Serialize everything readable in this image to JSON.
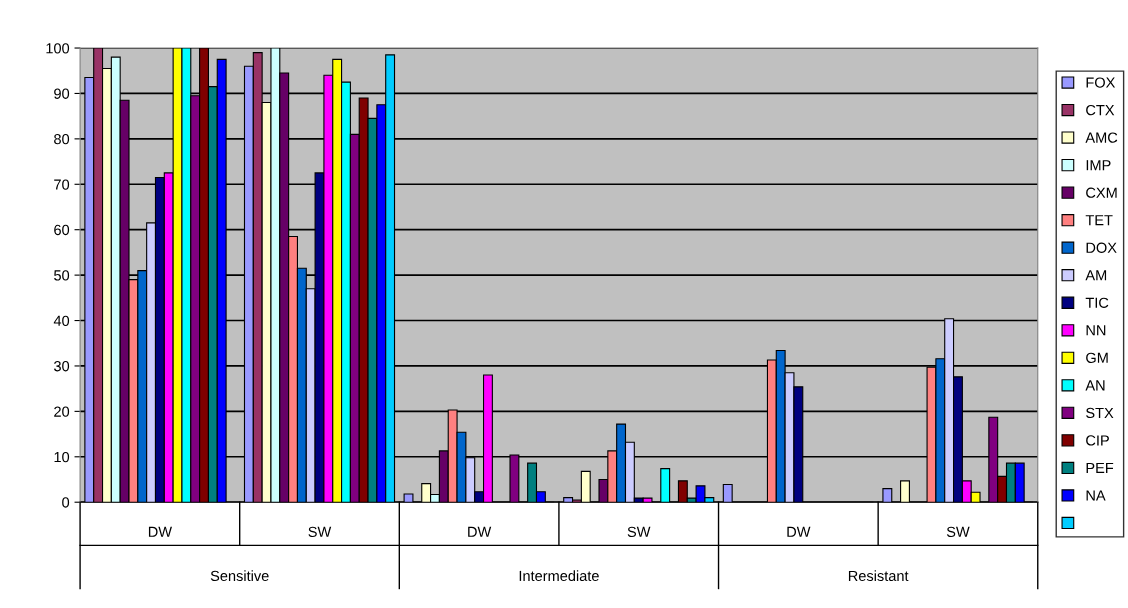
{
  "chart_data": {
    "type": "bar",
    "categories": [
      "DW",
      "SW",
      "DW",
      "SW",
      "DW",
      "SW"
    ],
    "annotations": [
      "Sensitive",
      "Intermediate",
      "Resistant"
    ],
    "ylim": [
      0,
      100
    ],
    "yticks": [
      0,
      10,
      20,
      30,
      40,
      50,
      60,
      70,
      80,
      90,
      100
    ],
    "grid": "y",
    "legend": "right",
    "series": [
      {
        "name": "FOX",
        "color": "#9999ff",
        "values": [
          93.5,
          96,
          1.8,
          1.0,
          3.9,
          3.0
        ]
      },
      {
        "name": "CTX",
        "color": "#993366",
        "values": [
          100,
          99,
          0,
          0.5,
          0,
          0
        ]
      },
      {
        "name": "AMC",
        "color": "#ffffcc",
        "values": [
          95.5,
          88,
          4.1,
          6.8,
          0,
          4.7
        ]
      },
      {
        "name": "IMP",
        "color": "#ccffff",
        "values": [
          98,
          100,
          1.7,
          0,
          0,
          0
        ]
      },
      {
        "name": "CXM",
        "color": "#660066",
        "values": [
          88.5,
          94.5,
          11.3,
          5.0,
          0,
          0
        ]
      },
      {
        "name": "TET",
        "color": "#ff8080",
        "values": [
          49,
          58.5,
          20.3,
          11.3,
          31.3,
          29.7
        ]
      },
      {
        "name": "DOX",
        "color": "#0066cc",
        "values": [
          51,
          51.5,
          15.4,
          17.2,
          33.4,
          31.6
        ]
      },
      {
        "name": "AM",
        "color": "#ccccff",
        "values": [
          61.5,
          47,
          9.8,
          13.2,
          28.5,
          40.4
        ]
      },
      {
        "name": "TIC",
        "color": "#000080",
        "values": [
          71.5,
          72.5,
          2.3,
          0.9,
          25.4,
          27.6
        ]
      },
      {
        "name": "NN",
        "color": "#ff00ff",
        "values": [
          72.5,
          94,
          28,
          0.9,
          0,
          4.7
        ]
      },
      {
        "name": "GM",
        "color": "#ffff00",
        "values": [
          100,
          97.5,
          0,
          0,
          0,
          2.2
        ]
      },
      {
        "name": "AN",
        "color": "#00ffff",
        "values": [
          100,
          92.5,
          0,
          7.4,
          0,
          0
        ]
      },
      {
        "name": "STX",
        "color": "#800080",
        "values": [
          89.5,
          81,
          10.4,
          0,
          0,
          18.7
        ]
      },
      {
        "name": "CIP",
        "color": "#800000",
        "values": [
          100,
          89,
          0,
          4.7,
          0,
          5.7
        ]
      },
      {
        "name": "PEF",
        "color": "#008080",
        "values": [
          91.5,
          84.5,
          8.6,
          0.9,
          0,
          8.6
        ]
      },
      {
        "name": "NA",
        "color": "#0000ff",
        "values": [
          97.5,
          87.5,
          2.3,
          3.6,
          0,
          8.6
        ]
      },
      {
        "color": "#00ccff",
        "values": [
          null,
          98.5,
          0,
          1.0,
          0,
          0
        ]
      }
    ]
  }
}
